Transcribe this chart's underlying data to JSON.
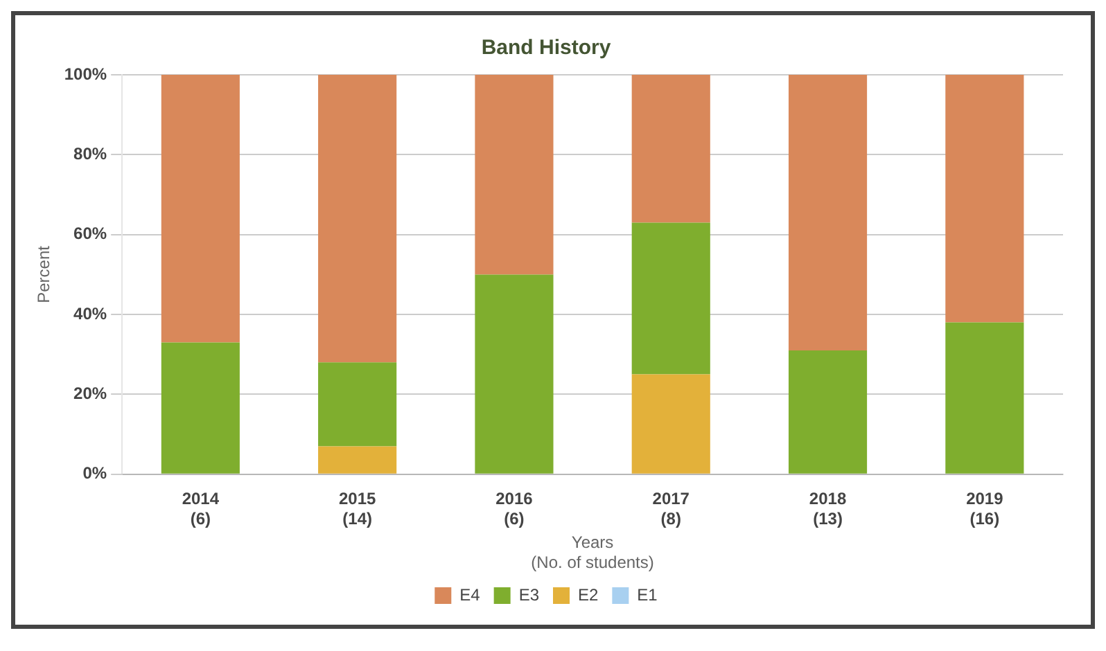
{
  "chart_data": {
    "type": "bar",
    "title": "Band History",
    "xlabel": "Years\n(No. of students)",
    "ylabel": "Percent",
    "categories": [
      "2014\n(6)",
      "2015\n(14)",
      "2016\n(6)",
      "2017\n(8)",
      "2018\n(13)",
      "2019\n(16)"
    ],
    "stacked": true,
    "series": [
      {
        "name": "E1",
        "color": "#a8d0f0",
        "values": [
          0,
          0,
          0,
          0,
          0,
          0
        ]
      },
      {
        "name": "E2",
        "color": "#e3b13a",
        "values": [
          0,
          7,
          0,
          25,
          0,
          0
        ]
      },
      {
        "name": "E3",
        "color": "#7fae2e",
        "values": [
          33,
          21,
          50,
          38,
          31,
          38
        ]
      },
      {
        "name": "E4",
        "color": "#d9885a",
        "values": [
          67,
          72,
          50,
          37,
          69,
          62
        ]
      }
    ],
    "ylim": [
      0,
      100
    ],
    "yticks": [
      {
        "value": 0,
        "label": "0%"
      },
      {
        "value": 20,
        "label": "20%"
      },
      {
        "value": 40,
        "label": "40%"
      },
      {
        "value": 60,
        "label": "60%"
      },
      {
        "value": 80,
        "label": "80%"
      },
      {
        "value": 100,
        "label": "100%"
      }
    ],
    "grid": "y",
    "legend": "bottom"
  }
}
